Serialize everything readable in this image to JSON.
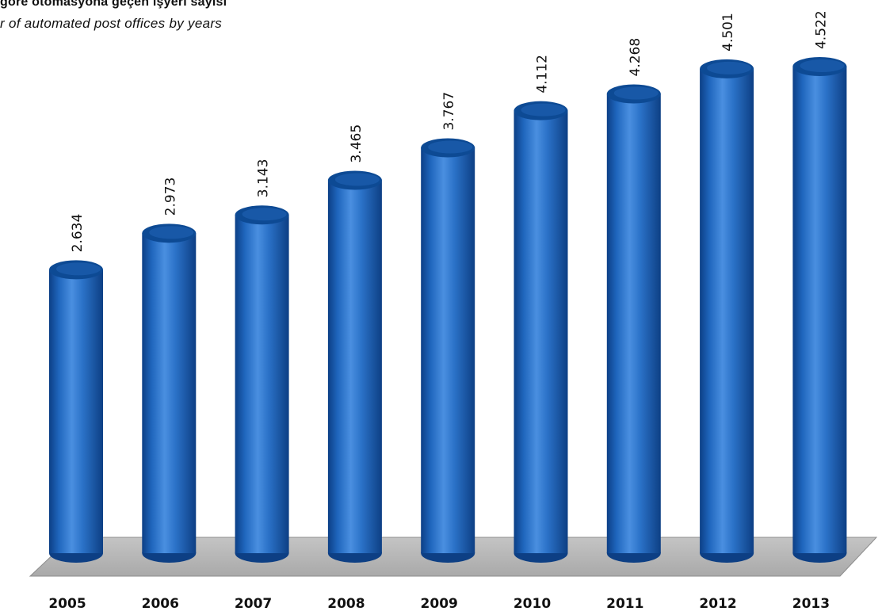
{
  "chart_data": {
    "type": "bar",
    "title": "göre otomasyona geçen işyeri sayısı",
    "subtitle": "r of automated post offices by years",
    "categories": [
      "2005",
      "2006",
      "2007",
      "2008",
      "2009",
      "2010",
      "2011",
      "2012",
      "2013"
    ],
    "values": [
      2634,
      2973,
      3143,
      3465,
      3767,
      4112,
      4268,
      4501,
      4522
    ],
    "value_labels": [
      "2.634",
      "2.973",
      "3.143",
      "3.465",
      "3.767",
      "4.112",
      "4.268",
      "4.501",
      "4.522"
    ],
    "xlabel": "",
    "ylabel": "",
    "ylim": [
      0,
      4700
    ],
    "grid": false,
    "colors": {
      "bar": "#1b5fb0",
      "bar_top": "#0d4a94",
      "floor": "#b8b8b8"
    }
  }
}
